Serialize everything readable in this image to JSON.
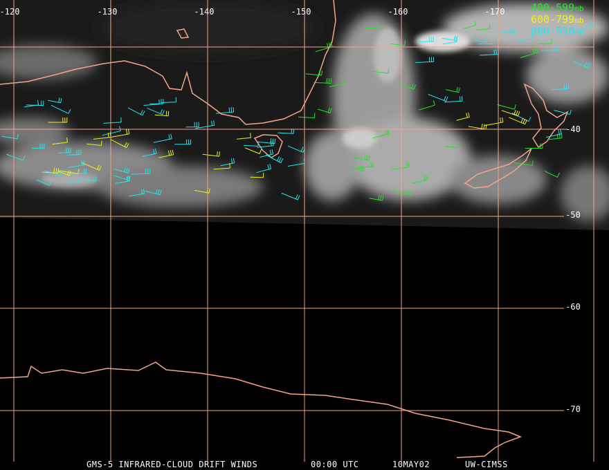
{
  "map": {
    "longitude_labels": [
      "-120",
      "-130",
      "-140",
      "-150",
      "-160",
      "-170"
    ],
    "latitude_labels": [
      "-40",
      "-50",
      "-60",
      "-70"
    ],
    "legend": [
      {
        "range": "400-599",
        "unit": "mb"
      },
      {
        "range": "600-799",
        "unit": "mb"
      },
      {
        "range": "800-950",
        "unit": "mb"
      }
    ],
    "footer": {
      "product": "GMS-5 INFRARED-CLOUD DRIFT WINDS",
      "time": "00:00 UTC",
      "date": "10MAY02",
      "source": "UW-CIMSS"
    }
  }
}
